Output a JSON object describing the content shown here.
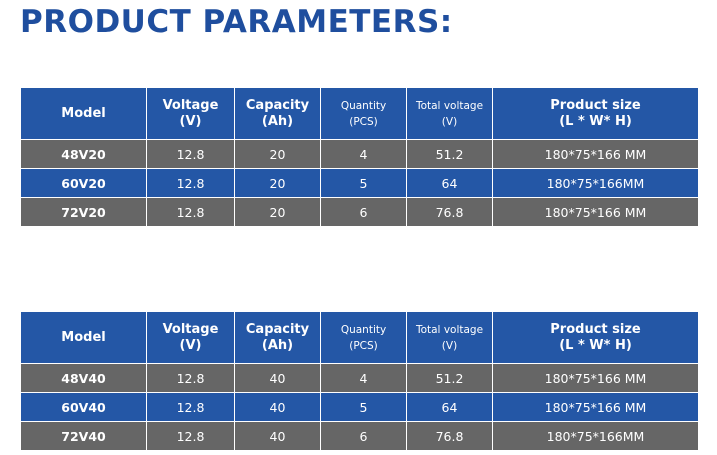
{
  "header": {
    "title": "PRODUCT PARAMETERS:"
  },
  "tables": [
    {
      "columns": [
        [
          "Model"
        ],
        [
          "Voltage",
          "(V)"
        ],
        [
          "Capacity",
          "(Ah)"
        ],
        [
          "Quantity",
          "(PCS)"
        ],
        [
          "Total voltage",
          "(V)"
        ],
        [
          "Product size",
          "(L * W* H)"
        ]
      ],
      "rows": [
        [
          "48V20",
          "12.8",
          "20",
          "4",
          "51.2",
          "180*75*166 MM"
        ],
        [
          "60V20",
          "12.8",
          "20",
          "5",
          "64",
          "180*75*166MM"
        ],
        [
          "72V20",
          "12.8",
          "20",
          "6",
          "76.8",
          "180*75*166 MM"
        ]
      ]
    },
    {
      "columns": [
        [
          "Model"
        ],
        [
          "Voltage",
          "(V)"
        ],
        [
          "Capacity",
          "(Ah)"
        ],
        [
          "Quantity",
          "(PCS)"
        ],
        [
          "Total voltage",
          "(V)"
        ],
        [
          "Product size",
          "(L * W* H)"
        ]
      ],
      "rows": [
        [
          "48V40",
          "12.8",
          "40",
          "4",
          "51.2",
          "180*75*166 MM"
        ],
        [
          "60V40",
          "12.8",
          "40",
          "5",
          "64",
          "180*75*166 MM"
        ],
        [
          "72V40",
          "12.8",
          "40",
          "6",
          "76.8",
          "180*75*166MM"
        ]
      ]
    }
  ]
}
